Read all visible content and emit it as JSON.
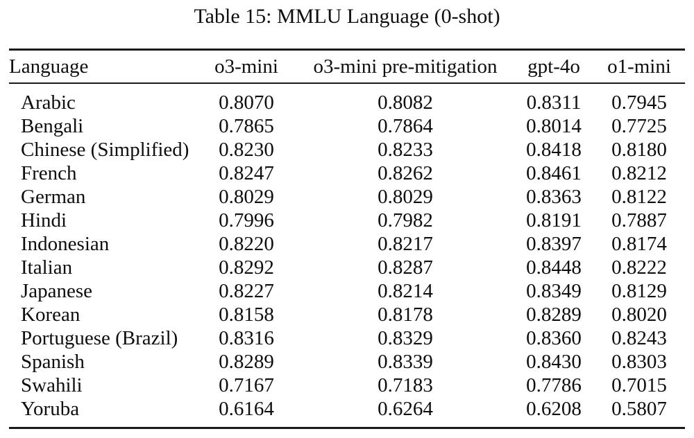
{
  "title": "Table 15: MMLU Language (0-shot)",
  "colors": {
    "background": "#ffffff",
    "text": "#0e0e0e",
    "rule": "#1a1a1a"
  },
  "table": {
    "columns": [
      "Language",
      "o3-mini",
      "o3-mini pre-mitigation",
      "gpt-4o",
      "o1-mini"
    ],
    "rows": [
      [
        "Arabic",
        "0.8070",
        "0.8082",
        "0.8311",
        "0.7945"
      ],
      [
        "Bengali",
        "0.7865",
        "0.7864",
        "0.8014",
        "0.7725"
      ],
      [
        "Chinese (Simplified)",
        "0.8230",
        "0.8233",
        "0.8418",
        "0.8180"
      ],
      [
        "French",
        "0.8247",
        "0.8262",
        "0.8461",
        "0.8212"
      ],
      [
        "German",
        "0.8029",
        "0.8029",
        "0.8363",
        "0.8122"
      ],
      [
        "Hindi",
        "0.7996",
        "0.7982",
        "0.8191",
        "0.7887"
      ],
      [
        "Indonesian",
        "0.8220",
        "0.8217",
        "0.8397",
        "0.8174"
      ],
      [
        "Italian",
        "0.8292",
        "0.8287",
        "0.8448",
        "0.8222"
      ],
      [
        "Japanese",
        "0.8227",
        "0.8214",
        "0.8349",
        "0.8129"
      ],
      [
        "Korean",
        "0.8158",
        "0.8178",
        "0.8289",
        "0.8020"
      ],
      [
        "Portuguese (Brazil)",
        "0.8316",
        "0.8329",
        "0.8360",
        "0.8243"
      ],
      [
        "Spanish",
        "0.8289",
        "0.8339",
        "0.8430",
        "0.8303"
      ],
      [
        "Swahili",
        "0.7167",
        "0.7183",
        "0.7786",
        "0.7015"
      ],
      [
        "Yoruba",
        "0.6164",
        "0.6264",
        "0.6208",
        "0.5807"
      ]
    ]
  }
}
